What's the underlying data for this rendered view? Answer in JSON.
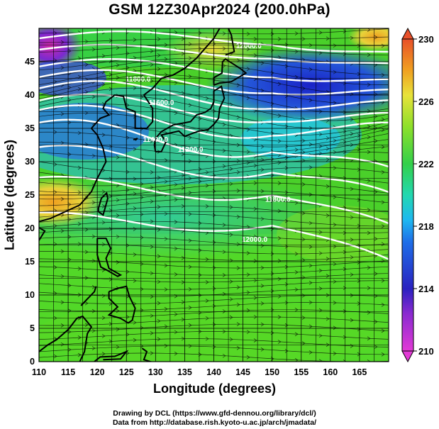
{
  "title": "GSM 12Z30Apr2024 (200.0hPa)",
  "x_axis": {
    "label": "Longitude (degrees)",
    "range": [
      110,
      170
    ],
    "ticks": [
      110,
      115,
      120,
      125,
      130,
      135,
      140,
      145,
      150,
      155,
      160,
      165
    ]
  },
  "y_axis": {
    "label": "Latitude  (degrees)",
    "range": [
      0,
      50
    ],
    "ticks": [
      0,
      5,
      10,
      15,
      20,
      25,
      30,
      35,
      40,
      45
    ]
  },
  "colorbar": {
    "ticks": [
      210,
      214,
      218,
      222,
      226,
      230
    ],
    "range": [
      210,
      230
    ],
    "colors": [
      "#e23ad6",
      "#2a22c0",
      "#1e8ef0",
      "#22d8d8",
      "#33d04a",
      "#8ee02a",
      "#e8e23a",
      "#f0a020",
      "#e8502a"
    ]
  },
  "contour_labels": [
    {
      "text": "12000.0",
      "lon": 146,
      "lat": 47
    },
    {
      "text": "11800.0",
      "lon": 127,
      "lat": 42
    },
    {
      "text": "11600.0",
      "lon": 131,
      "lat": 38.5
    },
    {
      "text": "11400.0",
      "lon": 130,
      "lat": 33
    },
    {
      "text": "11200.0",
      "lon": 136,
      "lat": 31.5
    },
    {
      "text": "11800.0",
      "lon": 151,
      "lat": 24
    },
    {
      "text": "12000.0",
      "lon": 147,
      "lat": 18
    }
  ],
  "credits": {
    "line1": "Drawing by DCL (https://www.gfd-dennou.org/library/dcl/)",
    "line2": "Data from http://database.rish.kyoto-u.ac.jp/arch/jmadata/"
  }
}
